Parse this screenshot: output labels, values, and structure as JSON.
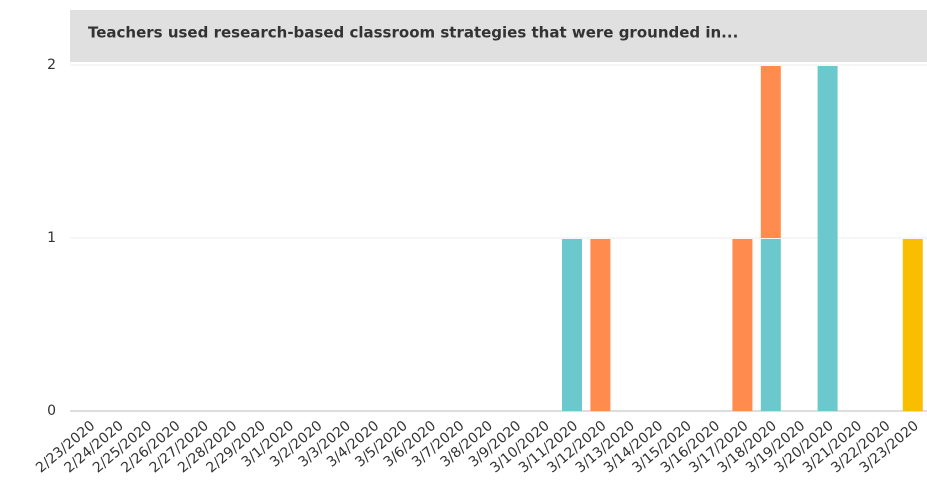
{
  "chart_data": {
    "type": "bar",
    "stacked": true,
    "title": "Teachers used research-based classroom strategies that were grounded in...",
    "categories": [
      "2/23/2020",
      "2/24/2020",
      "2/25/2020",
      "2/26/2020",
      "2/27/2020",
      "2/28/2020",
      "2/29/2020",
      "3/1/2020",
      "3/2/2020",
      "3/3/2020",
      "3/4/2020",
      "3/5/2020",
      "3/6/2020",
      "3/7/2020",
      "3/8/2020",
      "3/9/2020",
      "3/10/2020",
      "3/11/2020",
      "3/12/2020",
      "3/13/2020",
      "3/14/2020",
      "3/15/2020",
      "3/16/2020",
      "3/17/2020",
      "3/18/2020",
      "3/19/2020",
      "3/20/2020",
      "3/21/2020",
      "3/22/2020",
      "3/23/2020"
    ],
    "series": [
      {
        "color": "#6bc8cd",
        "values": [
          0,
          0,
          0,
          0,
          0,
          0,
          0,
          0,
          0,
          0,
          0,
          0,
          0,
          0,
          0,
          0,
          0,
          1,
          0,
          0,
          0,
          0,
          0,
          0,
          1,
          0,
          2,
          0,
          0,
          0
        ]
      },
      {
        "color": "#ff8b4f",
        "values": [
          0,
          0,
          0,
          0,
          0,
          0,
          0,
          0,
          0,
          0,
          0,
          0,
          0,
          0,
          0,
          0,
          0,
          0,
          1,
          0,
          0,
          0,
          0,
          1,
          1,
          0,
          0,
          0,
          0,
          0
        ]
      },
      {
        "color": "#f9be00",
        "values": [
          0,
          0,
          0,
          0,
          0,
          0,
          0,
          0,
          0,
          0,
          0,
          0,
          0,
          0,
          0,
          0,
          0,
          0,
          0,
          0,
          0,
          0,
          0,
          0,
          0,
          0,
          0,
          0,
          0,
          1
        ]
      }
    ],
    "ylim": [
      0,
      2
    ],
    "yticks": [
      0,
      1,
      2
    ],
    "grid": true
  }
}
